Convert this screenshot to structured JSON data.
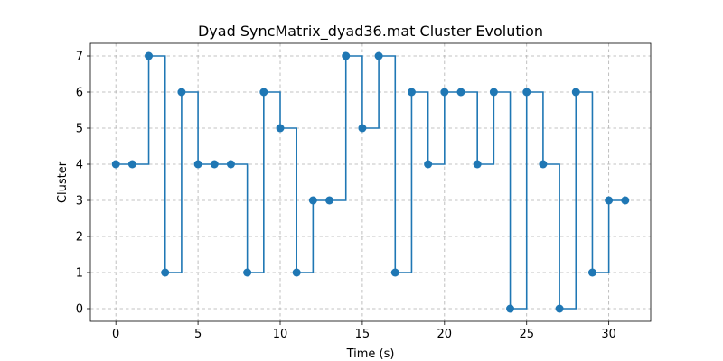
{
  "chart_data": {
    "type": "line",
    "title": "Dyad SyncMatrix_dyad36.mat Cluster Evolution",
    "xlabel": "Time (s)",
    "ylabel": "Cluster",
    "xlim": [
      -1.55,
      32.55
    ],
    "ylim": [
      -0.35,
      7.35
    ],
    "x_ticks": [
      0,
      5,
      10,
      15,
      20,
      25,
      30
    ],
    "y_ticks": [
      0,
      1,
      2,
      3,
      4,
      5,
      6,
      7
    ],
    "grid": true,
    "step": "post",
    "legend": null,
    "series": [
      {
        "x": [
          0,
          1,
          2,
          3,
          4,
          5,
          6,
          7,
          8,
          9,
          10,
          11,
          12,
          13,
          14,
          15,
          16,
          17,
          18,
          19,
          20,
          21,
          22,
          23,
          24,
          25,
          26,
          27,
          28,
          29,
          30,
          31
        ],
        "values": [
          4,
          4,
          7,
          1,
          6,
          4,
          4,
          4,
          1,
          6,
          5,
          1,
          3,
          3,
          7,
          5,
          7,
          1,
          6,
          4,
          6,
          6,
          4,
          6,
          0,
          6,
          4,
          0,
          6,
          1,
          3,
          3
        ],
        "color": "#1f77b4"
      }
    ]
  }
}
